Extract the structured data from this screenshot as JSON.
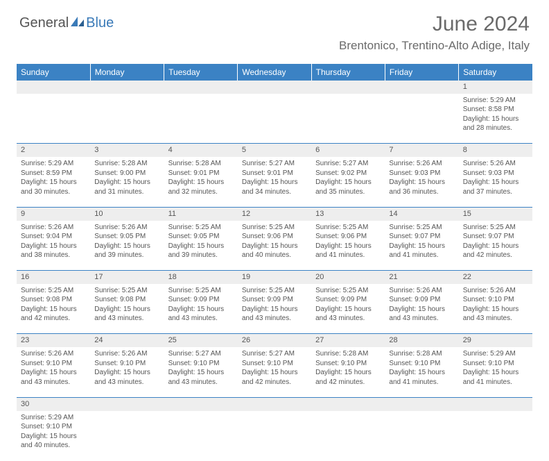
{
  "logo": {
    "part1": "General",
    "part2": "Blue"
  },
  "title": "June 2024",
  "location": "Brentonico, Trentino-Alto Adige, Italy",
  "colors": {
    "header_bg": "#3b82c4",
    "header_text": "#ffffff",
    "daynum_bg": "#eeeeee",
    "row_divider": "#3b82c4",
    "body_text": "#555555",
    "logo_gray": "#555555",
    "logo_blue": "#3a7ab8"
  },
  "day_headers": [
    "Sunday",
    "Monday",
    "Tuesday",
    "Wednesday",
    "Thursday",
    "Friday",
    "Saturday"
  ],
  "weeks": [
    [
      null,
      null,
      null,
      null,
      null,
      null,
      {
        "n": "1",
        "sr": "5:29 AM",
        "ss": "8:58 PM",
        "dl": "15 hours and 28 minutes."
      }
    ],
    [
      {
        "n": "2",
        "sr": "5:29 AM",
        "ss": "8:59 PM",
        "dl": "15 hours and 30 minutes."
      },
      {
        "n": "3",
        "sr": "5:28 AM",
        "ss": "9:00 PM",
        "dl": "15 hours and 31 minutes."
      },
      {
        "n": "4",
        "sr": "5:28 AM",
        "ss": "9:01 PM",
        "dl": "15 hours and 32 minutes."
      },
      {
        "n": "5",
        "sr": "5:27 AM",
        "ss": "9:01 PM",
        "dl": "15 hours and 34 minutes."
      },
      {
        "n": "6",
        "sr": "5:27 AM",
        "ss": "9:02 PM",
        "dl": "15 hours and 35 minutes."
      },
      {
        "n": "7",
        "sr": "5:26 AM",
        "ss": "9:03 PM",
        "dl": "15 hours and 36 minutes."
      },
      {
        "n": "8",
        "sr": "5:26 AM",
        "ss": "9:03 PM",
        "dl": "15 hours and 37 minutes."
      }
    ],
    [
      {
        "n": "9",
        "sr": "5:26 AM",
        "ss": "9:04 PM",
        "dl": "15 hours and 38 minutes."
      },
      {
        "n": "10",
        "sr": "5:26 AM",
        "ss": "9:05 PM",
        "dl": "15 hours and 39 minutes."
      },
      {
        "n": "11",
        "sr": "5:25 AM",
        "ss": "9:05 PM",
        "dl": "15 hours and 39 minutes."
      },
      {
        "n": "12",
        "sr": "5:25 AM",
        "ss": "9:06 PM",
        "dl": "15 hours and 40 minutes."
      },
      {
        "n": "13",
        "sr": "5:25 AM",
        "ss": "9:06 PM",
        "dl": "15 hours and 41 minutes."
      },
      {
        "n": "14",
        "sr": "5:25 AM",
        "ss": "9:07 PM",
        "dl": "15 hours and 41 minutes."
      },
      {
        "n": "15",
        "sr": "5:25 AM",
        "ss": "9:07 PM",
        "dl": "15 hours and 42 minutes."
      }
    ],
    [
      {
        "n": "16",
        "sr": "5:25 AM",
        "ss": "9:08 PM",
        "dl": "15 hours and 42 minutes."
      },
      {
        "n": "17",
        "sr": "5:25 AM",
        "ss": "9:08 PM",
        "dl": "15 hours and 43 minutes."
      },
      {
        "n": "18",
        "sr": "5:25 AM",
        "ss": "9:09 PM",
        "dl": "15 hours and 43 minutes."
      },
      {
        "n": "19",
        "sr": "5:25 AM",
        "ss": "9:09 PM",
        "dl": "15 hours and 43 minutes."
      },
      {
        "n": "20",
        "sr": "5:25 AM",
        "ss": "9:09 PM",
        "dl": "15 hours and 43 minutes."
      },
      {
        "n": "21",
        "sr": "5:26 AM",
        "ss": "9:09 PM",
        "dl": "15 hours and 43 minutes."
      },
      {
        "n": "22",
        "sr": "5:26 AM",
        "ss": "9:10 PM",
        "dl": "15 hours and 43 minutes."
      }
    ],
    [
      {
        "n": "23",
        "sr": "5:26 AM",
        "ss": "9:10 PM",
        "dl": "15 hours and 43 minutes."
      },
      {
        "n": "24",
        "sr": "5:26 AM",
        "ss": "9:10 PM",
        "dl": "15 hours and 43 minutes."
      },
      {
        "n": "25",
        "sr": "5:27 AM",
        "ss": "9:10 PM",
        "dl": "15 hours and 43 minutes."
      },
      {
        "n": "26",
        "sr": "5:27 AM",
        "ss": "9:10 PM",
        "dl": "15 hours and 42 minutes."
      },
      {
        "n": "27",
        "sr": "5:28 AM",
        "ss": "9:10 PM",
        "dl": "15 hours and 42 minutes."
      },
      {
        "n": "28",
        "sr": "5:28 AM",
        "ss": "9:10 PM",
        "dl": "15 hours and 41 minutes."
      },
      {
        "n": "29",
        "sr": "5:29 AM",
        "ss": "9:10 PM",
        "dl": "15 hours and 41 minutes."
      }
    ],
    [
      {
        "n": "30",
        "sr": "5:29 AM",
        "ss": "9:10 PM",
        "dl": "15 hours and 40 minutes."
      },
      null,
      null,
      null,
      null,
      null,
      null
    ]
  ],
  "labels": {
    "sunrise": "Sunrise:",
    "sunset": "Sunset:",
    "daylight": "Daylight:"
  }
}
